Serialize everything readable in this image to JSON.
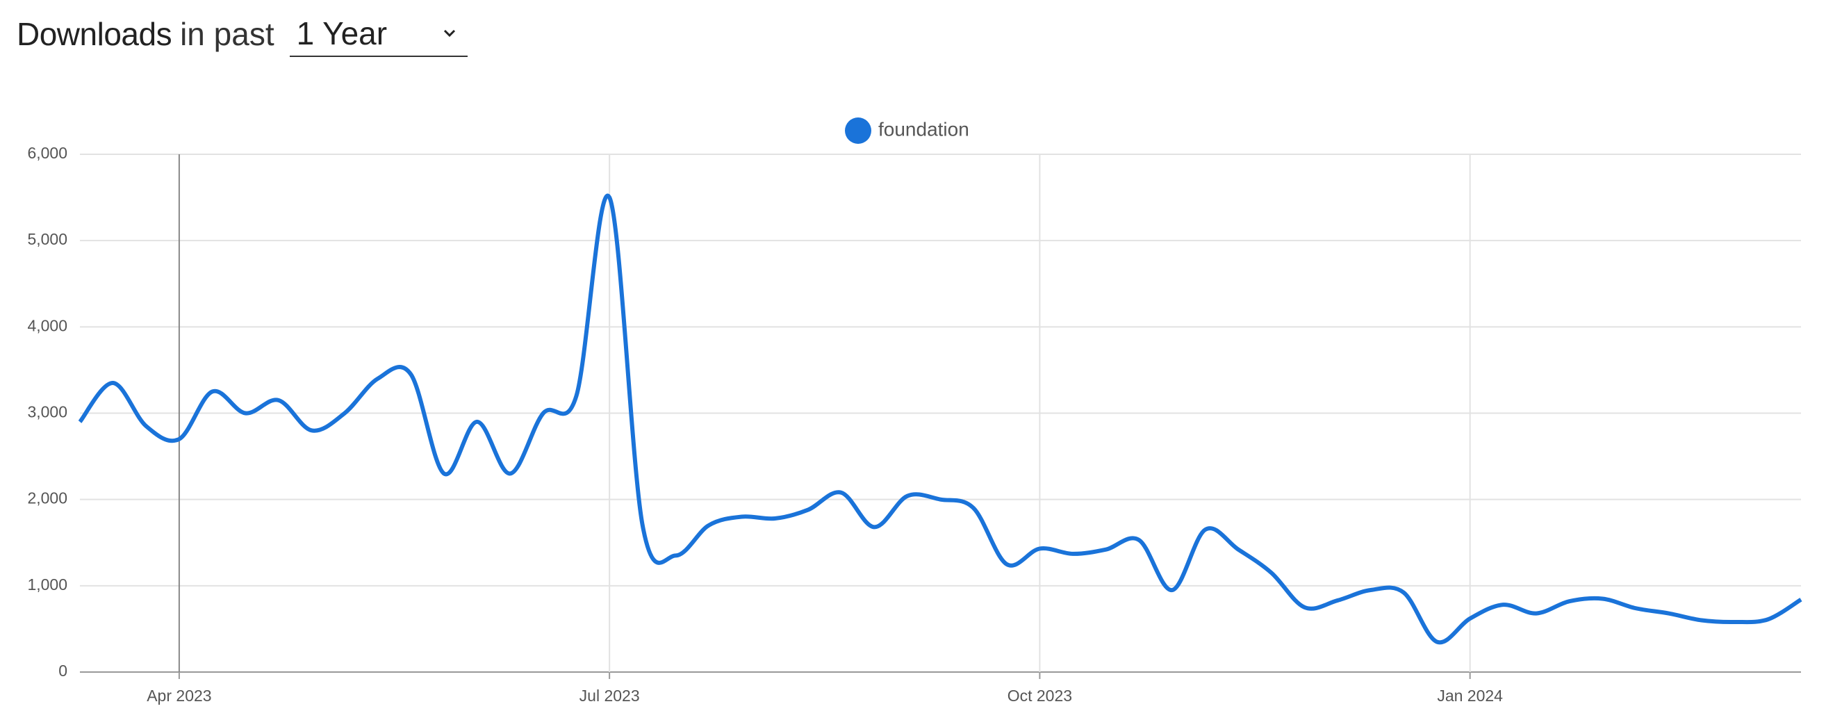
{
  "header": {
    "title": "Downloads",
    "subtitle": "in past",
    "range": "1 Year"
  },
  "chart_data": {
    "type": "line",
    "categories": [
      null,
      null,
      null,
      "Apr 2023",
      null,
      null,
      null,
      null,
      null,
      null,
      null,
      null,
      null,
      null,
      null,
      null,
      "Jul 2023",
      null,
      null,
      null,
      null,
      null,
      null,
      null,
      null,
      null,
      null,
      null,
      null,
      "Oct 2023",
      null,
      null,
      null,
      null,
      null,
      null,
      null,
      null,
      null,
      null,
      null,
      null,
      "Jan 2024",
      null,
      null,
      null,
      null,
      null,
      null,
      null,
      null,
      null,
      null
    ],
    "series": [
      {
        "name": "foundation",
        "color": "#1a73d9",
        "values": [
          2900,
          3350,
          2850,
          2700,
          3250,
          3000,
          3150,
          2800,
          3000,
          3400,
          3450,
          2300,
          2900,
          2300,
          3000,
          3200,
          5500,
          1700,
          1350,
          1700,
          1800,
          1780,
          1880,
          2080,
          1680,
          2040,
          2000,
          1900,
          1250,
          1430,
          1370,
          1420,
          1530,
          950,
          1650,
          1420,
          1150,
          750,
          830,
          950,
          920,
          350,
          620,
          780,
          680,
          820,
          850,
          740,
          680,
          600,
          580,
          610,
          840
        ]
      }
    ],
    "ylim": [
      0,
      6000
    ],
    "yticks": [
      0,
      {
        "value": 1000,
        "label": "1,000"
      },
      {
        "value": 2000,
        "label": "2,000"
      },
      {
        "value": 3000,
        "label": "3,000"
      },
      {
        "value": 4000,
        "label": "4,000"
      },
      {
        "value": 5000,
        "label": "5,000"
      },
      {
        "value": 6000,
        "label": "6,000"
      }
    ],
    "grid": true,
    "legend": "top"
  }
}
